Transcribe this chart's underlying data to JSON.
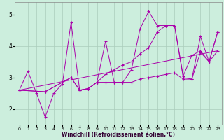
{
  "xlabel": "Windchill (Refroidissement éolien,°C)",
  "bg_color": "#cceedd",
  "grid_color": "#aaccbb",
  "line_color": "#aa00aa",
  "xlim": [
    -0.5,
    23.5
  ],
  "ylim": [
    1.5,
    5.4
  ],
  "yticks": [
    2,
    3,
    4,
    5
  ],
  "xticks": [
    0,
    1,
    2,
    3,
    4,
    5,
    6,
    7,
    8,
    9,
    10,
    11,
    12,
    13,
    14,
    15,
    16,
    17,
    18,
    19,
    20,
    21,
    22,
    23
  ],
  "line1_x": [
    0,
    1,
    2,
    3,
    4,
    5,
    6,
    7,
    8,
    9,
    10,
    11,
    12,
    13,
    14,
    15,
    16,
    17,
    18,
    19,
    20,
    21,
    22,
    23
  ],
  "line1_y": [
    2.6,
    3.2,
    2.5,
    1.75,
    2.5,
    2.8,
    4.75,
    2.6,
    2.65,
    2.85,
    4.15,
    2.85,
    2.85,
    3.25,
    4.55,
    5.1,
    4.65,
    4.65,
    4.65,
    3.0,
    2.95,
    4.3,
    3.5,
    4.45
  ],
  "line2_x": [
    0,
    3,
    6,
    7,
    8,
    9,
    10,
    11,
    12,
    13,
    14,
    15,
    16,
    17,
    18,
    19,
    20,
    21,
    22,
    23
  ],
  "line2_y": [
    2.6,
    2.55,
    3.0,
    2.6,
    2.65,
    2.85,
    2.85,
    2.85,
    2.85,
    2.85,
    2.95,
    3.0,
    3.05,
    3.1,
    3.15,
    2.95,
    2.95,
    3.8,
    3.5,
    3.85
  ],
  "line3_x": [
    0,
    3,
    6,
    7,
    8,
    9,
    10,
    11,
    12,
    13,
    14,
    15,
    16,
    17,
    18,
    19,
    20,
    21,
    22,
    23
  ],
  "line3_y": [
    2.6,
    2.55,
    3.0,
    2.6,
    2.65,
    2.85,
    3.1,
    3.25,
    3.4,
    3.5,
    3.75,
    3.95,
    4.45,
    4.65,
    4.65,
    3.05,
    3.7,
    3.85,
    3.5,
    4.45
  ],
  "line4_x": [
    0,
    23
  ],
  "line4_y": [
    2.6,
    3.85
  ]
}
